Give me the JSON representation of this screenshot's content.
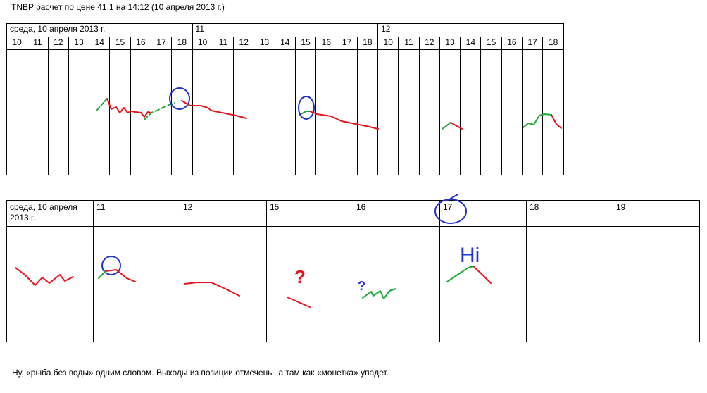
{
  "header": {
    "title": "TNBP расчет по цене 41.1  на 14:12  (10 апреля 2013  г.)"
  },
  "table1": {
    "days": [
      "среда, 10 апреля 2013 г.",
      "11",
      "12"
    ],
    "hours": [
      "10",
      "11",
      "12",
      "13",
      "14",
      "15",
      "16",
      "17",
      "18",
      "10",
      "11",
      "12",
      "13",
      "14",
      "15",
      "16",
      "17",
      "18",
      "10",
      "11",
      "12",
      "13",
      "14",
      "15",
      "16",
      "17",
      "18"
    ]
  },
  "table2": {
    "columns": [
      "среда, 10 апреля 2013 г.",
      "11",
      "12",
      "15",
      "16",
      "17",
      "18",
      "19"
    ]
  },
  "annotations": [
    "?",
    "?",
    "Hi"
  ],
  "footer": "Ну, «рыба без воды» одним словом. Выходы из позиции отмечены, а там как «монетка» упадет."
}
